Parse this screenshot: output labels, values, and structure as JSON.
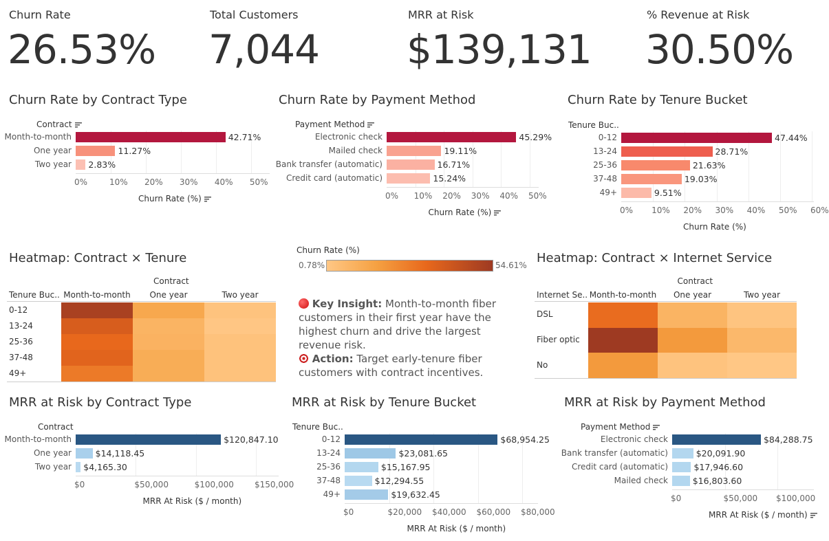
{
  "kpis": [
    {
      "label": "Churn Rate",
      "value": "26.53%"
    },
    {
      "label": "Total Customers",
      "value": "7,044"
    },
    {
      "label": "MRR at Risk",
      "value": "$139,131"
    },
    {
      "label": "% Revenue at Risk",
      "value": "30.50%"
    }
  ],
  "charts": [
    {
      "title": "Churn Rate by Contract Type",
      "dim_label": "Contract",
      "dim_sorted": true,
      "axis_title": "Churn Rate (%)",
      "axis_sorted": true,
      "ticks": [
        "0%",
        "10%",
        "20%",
        "30%",
        "40%",
        "50%"
      ],
      "tick_values": [
        0,
        10,
        20,
        30,
        40,
        50
      ],
      "bars": [
        {
          "label": "Month-to-month",
          "value": 42.71,
          "text": "42.71%",
          "color": "#b3173e"
        },
        {
          "label": "One year",
          "value": 11.27,
          "text": "11.27%",
          "color": "#f7917b"
        },
        {
          "label": "Two year",
          "value": 2.83,
          "text": "2.83%",
          "color": "#fcc0b3"
        }
      ]
    },
    {
      "title": "Churn Rate by Payment Method",
      "dim_label": "Payment Method",
      "dim_sorted": true,
      "axis_title": "Churn Rate (%)",
      "axis_sorted": true,
      "ticks": [
        "0%",
        "10%",
        "20%",
        "30%",
        "40%",
        "50%"
      ],
      "tick_values": [
        0,
        10,
        20,
        30,
        40,
        50
      ],
      "bars": [
        {
          "label": "Electronic check",
          "value": 45.29,
          "text": "45.29%",
          "color": "#b3173e"
        },
        {
          "label": "Mailed check",
          "value": 19.11,
          "text": "19.11%",
          "color": "#f9a290"
        },
        {
          "label": "Bank transfer (automatic)",
          "value": 16.71,
          "text": "16.71%",
          "color": "#fbb1a2"
        },
        {
          "label": "Credit card (automatic)",
          "value": 15.24,
          "text": "15.24%",
          "color": "#fcbdaf"
        }
      ]
    },
    {
      "title": "Churn Rate by Tenure Bucket",
      "dim_label": "Tenure Buc..",
      "dim_sorted": false,
      "axis_title": "Churn Rate (%)",
      "axis_sorted": false,
      "ticks": [
        "0%",
        "10%",
        "20%",
        "30%",
        "40%",
        "50%",
        "60%"
      ],
      "tick_values": [
        0,
        10,
        20,
        30,
        40,
        50,
        60
      ],
      "bars": [
        {
          "label": "0-12",
          "value": 47.44,
          "text": "47.44%",
          "color": "#b3173e"
        },
        {
          "label": "13-24",
          "value": 28.71,
          "text": "28.71%",
          "color": "#ee5e4e"
        },
        {
          "label": "25-36",
          "value": 21.63,
          "text": "21.63%",
          "color": "#f8896c"
        },
        {
          "label": "37-48",
          "value": 19.03,
          "text": "19.03%",
          "color": "#f9967d"
        },
        {
          "label": "49+",
          "value": 9.51,
          "text": "9.51%",
          "color": "#fcbaa9"
        }
      ]
    },
    {
      "title": "MRR at Risk by Contract Type",
      "dim_label": "Contract",
      "dim_sorted": false,
      "axis_title": "MRR At Risk ($ / month)",
      "axis_sorted": false,
      "ticks": [
        "$0",
        "$50,000",
        "$100,000",
        "$150,000"
      ],
      "tick_values": [
        0,
        50000,
        100000,
        150000
      ],
      "bars": [
        {
          "label": "Month-to-month",
          "value": 120847.1,
          "text": "$120,847.10",
          "color": "#2a5783"
        },
        {
          "label": "One year",
          "value": 14118.45,
          "text": "$14,118.45",
          "color": "#a9d0ec"
        },
        {
          "label": "Two year",
          "value": 4165.3,
          "text": "$4,165.30",
          "color": "#b9daf1"
        }
      ]
    },
    {
      "title": "MRR at Risk by Tenure Bucket",
      "dim_label": "Tenure Buc..",
      "dim_sorted": false,
      "axis_title": "MRR At Risk ($ / month)",
      "axis_sorted": false,
      "ticks": [
        "$0",
        "$20,000",
        "$40,000",
        "$60,000",
        "$80,000"
      ],
      "tick_values": [
        0,
        20000,
        40000,
        60000,
        80000
      ],
      "bars": [
        {
          "label": "0-12",
          "value": 68954.25,
          "text": "$68,954.25",
          "color": "#2a5783"
        },
        {
          "label": "13-24",
          "value": 23081.65,
          "text": "$23,081.65",
          "color": "#9ec8e6"
        },
        {
          "label": "25-36",
          "value": 15167.95,
          "text": "$15,167.95",
          "color": "#b3d7ef"
        },
        {
          "label": "37-48",
          "value": 12294.55,
          "text": "$12,294.55",
          "color": "#b8daf1"
        },
        {
          "label": "49+",
          "value": 19632.45,
          "text": "$19,632.45",
          "color": "#a4cbe8"
        }
      ]
    },
    {
      "title": "MRR at Risk by Payment Method",
      "dim_label": "Payment Method",
      "dim_sorted": true,
      "axis_title": "MRR At Risk ($ / month)",
      "axis_sorted": true,
      "ticks": [
        "$0",
        "$50,000",
        "$100,000"
      ],
      "tick_values": [
        0,
        50000,
        100000
      ],
      "bars": [
        {
          "label": "Electronic check",
          "value": 84288.75,
          "text": "$84,288.75",
          "color": "#2a5783"
        },
        {
          "label": "Bank transfer (automatic)",
          "value": 20091.9,
          "text": "$20,091.90",
          "color": "#b3d7ef"
        },
        {
          "label": "Credit card (automatic)",
          "value": 17946.6,
          "text": "$17,946.60",
          "color": "#b3d7ef"
        },
        {
          "label": "Mailed check",
          "value": 16803.6,
          "text": "$16,803.60",
          "color": "#b3d7ef"
        }
      ]
    }
  ],
  "heatmaps": [
    {
      "title": "Heatmap: Contract × Tenure",
      "col_header": "Contract",
      "row_header": "Tenure Buc..",
      "columns": [
        "Month-to-month",
        "One year",
        "Two year"
      ],
      "rows": [
        "0-12",
        "13-24",
        "25-36",
        "37-48",
        "49+"
      ],
      "values": [
        [
          51.5,
          14,
          2.5
        ],
        [
          38,
          9,
          1
        ],
        [
          33,
          9.5,
          3
        ],
        [
          35,
          12,
          3
        ],
        [
          28,
          12,
          3
        ]
      ]
    },
    {
      "title": "Heatmap: Contract × Internet Service",
      "col_header": "Contract",
      "row_header": "Internet Se..",
      "columns": [
        "Month-to-month",
        "One year",
        "Two year"
      ],
      "rows": [
        "DSL",
        "Fiber optic",
        "No"
      ],
      "values": [
        [
          32,
          9,
          2
        ],
        [
          54.61,
          19,
          7
        ],
        [
          19,
          2.5,
          0.78
        ]
      ]
    }
  ],
  "legend": {
    "title": "Churn Rate (%)",
    "min": "0.78%",
    "max": "54.61%",
    "min_value": 0.78,
    "max_value": 54.61,
    "colors": [
      "#ffc785",
      "#f5a142",
      "#e8681c",
      "#9e3a22"
    ]
  },
  "insight": {
    "key_label": "Key Insight:",
    "key_text": " Month-to-month fiber customers in their first year have the highest churn and drive the largest revenue risk.",
    "action_label": "Action:",
    "action_text": " Target early-tenure fiber customers with contract incentives.",
    "key_icon": "red-circle-icon",
    "action_icon": "dart-target-icon"
  }
}
